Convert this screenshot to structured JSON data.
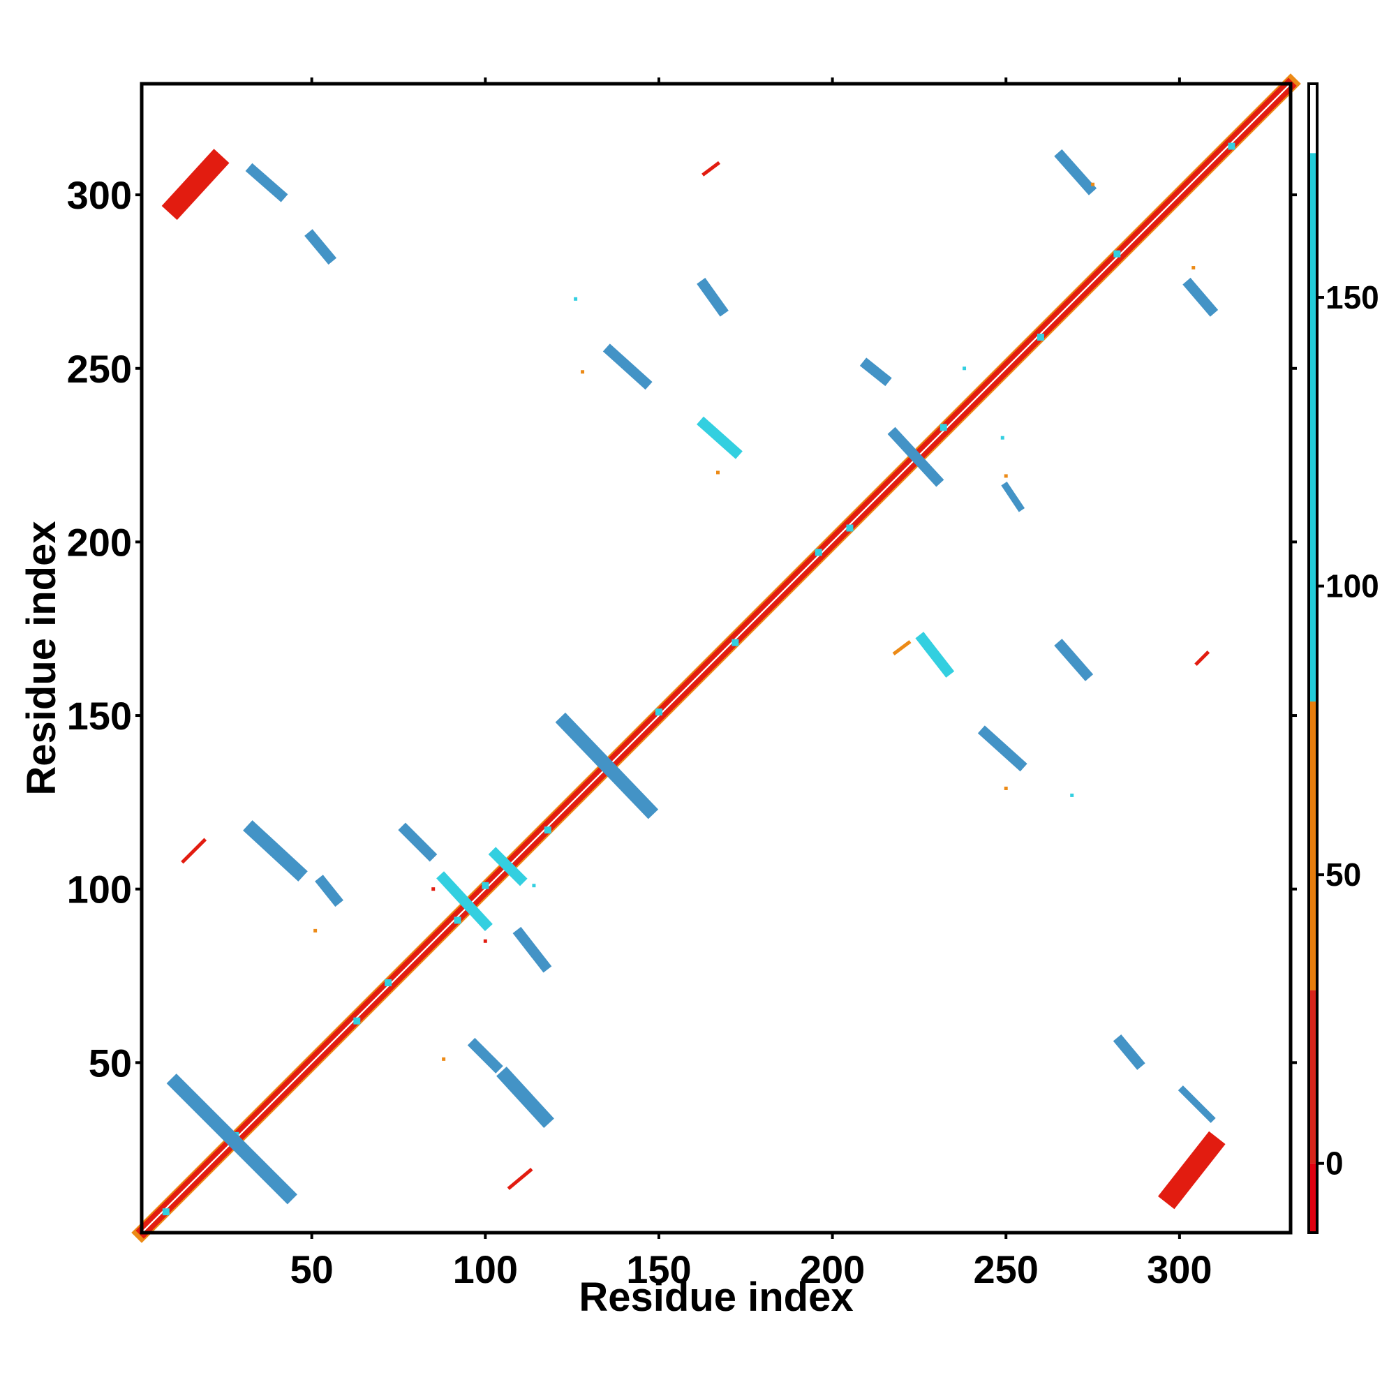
{
  "chart_data": {
    "type": "heatmap",
    "title": "",
    "xlabel": "Residue index",
    "ylabel": "Residue index",
    "xlim": [
      1,
      332
    ],
    "ylim": [
      1,
      332
    ],
    "x_ticks": [
      50,
      100,
      150,
      200,
      250,
      300
    ],
    "y_ticks": [
      50,
      100,
      150,
      200,
      250,
      300
    ],
    "grid": false,
    "colorbar": {
      "range": [
        -12,
        187
      ],
      "ticks": [
        0,
        50,
        100,
        150
      ],
      "bands": [
        {
          "from": -12,
          "to": 0,
          "color": "#e0000f"
        },
        {
          "from": 0,
          "to": 30,
          "color": "#d7251b"
        },
        {
          "from": 30,
          "to": 80,
          "color": "#e67d0d"
        },
        {
          "from": 80,
          "to": 175,
          "color": "#22cbd8"
        },
        {
          "from": 175,
          "to": 187,
          "color": "#ffffff"
        }
      ]
    },
    "colors": {
      "red": "#e21c10",
      "orange": "#ec8a16",
      "cyan": "#33cfe0",
      "blue": "#4393c6"
    },
    "diagonal": {
      "from": 1,
      "to": 332
    },
    "segments": [
      {
        "x": [
          11,
          22
        ],
        "y": [
          297,
          309
        ],
        "color": "red",
        "width": 6
      },
      {
        "x": [
          33,
          41
        ],
        "y": [
          307,
          300
        ],
        "color": "blue",
        "width": 3
      },
      {
        "x": [
          50,
          55
        ],
        "y": [
          288,
          282
        ],
        "color": "blue",
        "width": 3
      },
      {
        "x": [
          163,
          168
        ],
        "y": [
          274,
          267
        ],
        "color": "blue",
        "width": 3
      },
      {
        "x": [
          136,
          146
        ],
        "y": [
          255,
          246
        ],
        "color": "blue",
        "width": 3
      },
      {
        "x": [
          163,
          172
        ],
        "y": [
          234,
          226
        ],
        "color": "cyan",
        "width": 3
      },
      {
        "x": [
          210,
          215
        ],
        "y": [
          251,
          247
        ],
        "color": "blue",
        "width": 3
      },
      {
        "x": [
          266,
          274
        ],
        "y": [
          311,
          302
        ],
        "color": "blue",
        "width": 3
      },
      {
        "x": [
          303,
          309
        ],
        "y": [
          274,
          267
        ],
        "color": "blue",
        "width": 3
      },
      {
        "x": [
          218,
          230
        ],
        "y": [
          231,
          218
        ],
        "color": "blue",
        "width": 3
      },
      {
        "x": [
          250,
          254
        ],
        "y": [
          216,
          210
        ],
        "color": "blue",
        "width": 2
      },
      {
        "x": [
          226,
          233
        ],
        "y": [
          172,
          163
        ],
        "color": "cyan",
        "width": 3
      },
      {
        "x": [
          266,
          273
        ],
        "y": [
          170,
          162
        ],
        "color": "blue",
        "width": 3
      },
      {
        "x": [
          244,
          254
        ],
        "y": [
          145,
          136
        ],
        "color": "blue",
        "width": 3
      },
      {
        "x": [
          123,
          147
        ],
        "y": [
          148,
          123
        ],
        "color": "blue",
        "width": 4
      },
      {
        "x": [
          33,
          46
        ],
        "y": [
          117,
          105
        ],
        "color": "blue",
        "width": 4
      },
      {
        "x": [
          77,
          84
        ],
        "y": [
          117,
          110
        ],
        "color": "blue",
        "width": 3
      },
      {
        "x": [
          53,
          57
        ],
        "y": [
          102,
          97
        ],
        "color": "blue",
        "width": 3
      },
      {
        "x": [
          88,
          100
        ],
        "y": [
          103,
          90
        ],
        "color": "cyan",
        "width": 3
      },
      {
        "x": [
          103,
          110
        ],
        "y": [
          110,
          103
        ],
        "color": "cyan",
        "width": 3
      },
      {
        "x": [
          110,
          117
        ],
        "y": [
          87,
          78
        ],
        "color": "blue",
        "width": 3
      },
      {
        "x": [
          97,
          103
        ],
        "y": [
          55,
          49
        ],
        "color": "blue",
        "width": 3
      },
      {
        "x": [
          106,
          117
        ],
        "y": [
          46,
          34
        ],
        "color": "blue",
        "width": 4
      },
      {
        "x": [
          11,
          43
        ],
        "y": [
          44,
          12
        ],
        "color": "blue",
        "width": 4
      },
      {
        "x": [
          283,
          288
        ],
        "y": [
          56,
          50
        ],
        "color": "blue",
        "width": 3
      },
      {
        "x": [
          301,
          309
        ],
        "y": [
          42,
          34
        ],
        "color": "blue",
        "width": 2
      },
      {
        "x": [
          298,
          309
        ],
        "y": [
          12,
          26
        ],
        "color": "red",
        "width": 6
      },
      {
        "x": [
          13,
          19
        ],
        "y": [
          108,
          114
        ],
        "color": "red",
        "width": 1
      },
      {
        "x": [
          107,
          113
        ],
        "y": [
          14,
          19
        ],
        "color": "red",
        "width": 1
      },
      {
        "x": [
          163,
          167
        ],
        "y": [
          306,
          309
        ],
        "color": "red",
        "width": 1
      },
      {
        "x": [
          305,
          308
        ],
        "y": [
          165,
          168
        ],
        "color": "red",
        "width": 1
      },
      {
        "x": [
          218,
          222
        ],
        "y": [
          168,
          171
        ],
        "color": "orange",
        "width": 1
      }
    ],
    "points": [
      {
        "x": 128,
        "y": 249,
        "color": "orange"
      },
      {
        "x": 126,
        "y": 270,
        "color": "cyan"
      },
      {
        "x": 88,
        "y": 51,
        "color": "orange"
      },
      {
        "x": 51,
        "y": 88,
        "color": "orange"
      },
      {
        "x": 250,
        "y": 129,
        "color": "orange"
      },
      {
        "x": 269,
        "y": 127,
        "color": "cyan"
      },
      {
        "x": 250,
        "y": 219,
        "color": "orange"
      },
      {
        "x": 249,
        "y": 230,
        "color": "cyan"
      },
      {
        "x": 167,
        "y": 220,
        "color": "orange"
      },
      {
        "x": 238,
        "y": 250,
        "color": "cyan"
      },
      {
        "x": 275,
        "y": 303,
        "color": "orange"
      },
      {
        "x": 304,
        "y": 279,
        "color": "orange"
      },
      {
        "x": 100,
        "y": 85,
        "color": "red"
      },
      {
        "x": 85,
        "y": 100,
        "color": "red"
      },
      {
        "x": 114,
        "y": 101,
        "color": "cyan"
      }
    ]
  }
}
